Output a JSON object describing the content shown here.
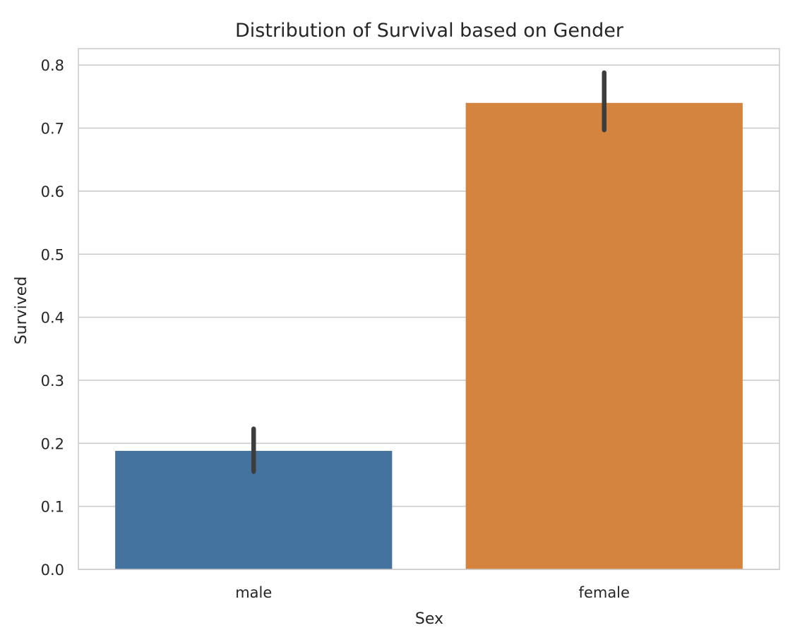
{
  "chart_data": {
    "type": "bar",
    "title": "Distribution of Survival based on Gender",
    "xlabel": "Sex",
    "ylabel": "Survived",
    "categories": [
      "male",
      "female"
    ],
    "values": [
      0.188,
      0.74
    ],
    "error_bars": [
      {
        "low": 0.155,
        "high": 0.223
      },
      {
        "low": 0.697,
        "high": 0.788
      }
    ],
    "ylim": [
      0,
      0.826
    ],
    "yticks": [
      "0.0",
      "0.1",
      "0.2",
      "0.3",
      "0.4",
      "0.5",
      "0.6",
      "0.7",
      "0.8"
    ],
    "grid": "horizontal",
    "colors": [
      "#4473a0",
      "#d4843f"
    ],
    "error_bar_color": "#3d3d3d",
    "grid_color": "#cccccc"
  }
}
